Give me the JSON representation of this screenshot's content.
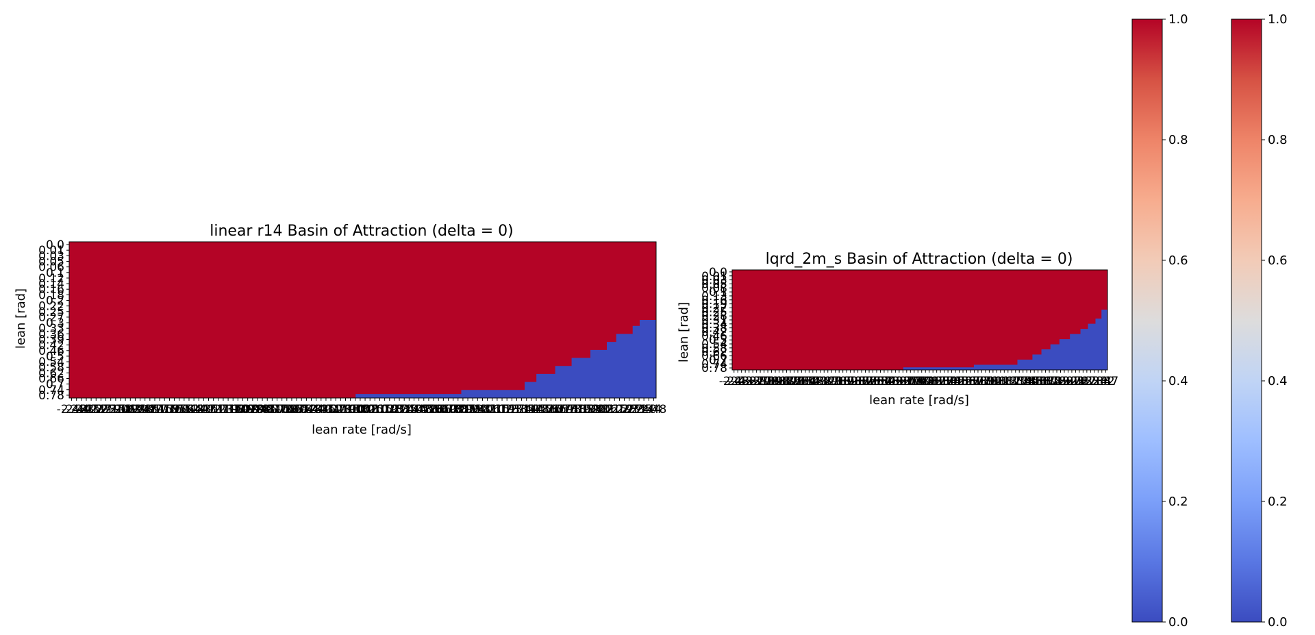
{
  "chart_data": [
    {
      "type": "heatmap",
      "title": "linear r14 Basin of Attraction (delta = 0)",
      "xlabel": "lean rate [rad/s]",
      "ylabel": "lean [rad]",
      "y_tick_labels": [
        "0.0",
        "0.01",
        "0.03",
        "0.05",
        "0.06",
        "0.1",
        "0.12",
        "0.14",
        "0.16",
        "0.18",
        "0.2",
        "0.22",
        "0.25",
        "0.27",
        "0.3",
        "0.33",
        "0.36",
        "0.39",
        "0.42",
        "0.46",
        "0.5",
        "0.54",
        "0.58",
        "0.62",
        "0.66",
        "0.7",
        "0.74",
        "0.78"
      ],
      "x_range": [
        -2.5,
        2.5
      ],
      "values_description_key": "boundary",
      "boundary": [
        {
          "x": -2.5,
          "y": 0.78
        },
        {
          "x": -0.06,
          "y": 0.78
        },
        {
          "x": -0.06,
          "y": 0.76
        },
        {
          "x": 0.84,
          "y": 0.76
        },
        {
          "x": 0.84,
          "y": 0.74
        },
        {
          "x": 1.38,
          "y": 0.74
        },
        {
          "x": 1.38,
          "y": 0.7
        },
        {
          "x": 1.48,
          "y": 0.7
        },
        {
          "x": 1.48,
          "y": 0.66
        },
        {
          "x": 1.64,
          "y": 0.66
        },
        {
          "x": 1.64,
          "y": 0.62
        },
        {
          "x": 1.78,
          "y": 0.62
        },
        {
          "x": 1.78,
          "y": 0.58
        },
        {
          "x": 1.94,
          "y": 0.58
        },
        {
          "x": 1.94,
          "y": 0.54
        },
        {
          "x": 2.08,
          "y": 0.54
        },
        {
          "x": 2.08,
          "y": 0.5
        },
        {
          "x": 2.16,
          "y": 0.5
        },
        {
          "x": 2.16,
          "y": 0.46
        },
        {
          "x": 2.3,
          "y": 0.46
        },
        {
          "x": 2.3,
          "y": 0.42
        },
        {
          "x": 2.36,
          "y": 0.42
        },
        {
          "x": 2.36,
          "y": 0.39
        },
        {
          "x": 2.5,
          "y": 0.39
        }
      ],
      "colorbar_range": [
        0.0,
        1.0
      ]
    },
    {
      "type": "heatmap",
      "title": "lqrd_2m_s Basin of Attraction (delta = 0)",
      "xlabel": "lean rate [rad/s]",
      "ylabel": "lean [rad]",
      "y_tick_labels": [
        "0.0",
        "0.01",
        "0.03",
        "0.05",
        "0.08",
        "0.1",
        "0.13",
        "0.16",
        "0.19",
        "0.22",
        "0.25",
        "0.28",
        "0.31",
        "0.34",
        "0.38",
        "0.42",
        "0.46",
        "0.5",
        "0.54",
        "0.58",
        "0.62",
        "0.66",
        "0.7",
        "0.74",
        "0.78"
      ],
      "x_range": [
        -2.5,
        2.5
      ],
      "boundary": [
        {
          "x": -2.5,
          "y": 0.78
        },
        {
          "x": -0.22,
          "y": 0.78
        },
        {
          "x": -0.22,
          "y": 0.76
        },
        {
          "x": 0.72,
          "y": 0.76
        },
        {
          "x": 0.72,
          "y": 0.74
        },
        {
          "x": 1.3,
          "y": 0.74
        },
        {
          "x": 1.3,
          "y": 0.7
        },
        {
          "x": 1.5,
          "y": 0.7
        },
        {
          "x": 1.5,
          "y": 0.66
        },
        {
          "x": 1.62,
          "y": 0.66
        },
        {
          "x": 1.62,
          "y": 0.62
        },
        {
          "x": 1.74,
          "y": 0.62
        },
        {
          "x": 1.74,
          "y": 0.58
        },
        {
          "x": 1.86,
          "y": 0.58
        },
        {
          "x": 1.86,
          "y": 0.54
        },
        {
          "x": 2.0,
          "y": 0.54
        },
        {
          "x": 2.0,
          "y": 0.5
        },
        {
          "x": 2.14,
          "y": 0.5
        },
        {
          "x": 2.14,
          "y": 0.46
        },
        {
          "x": 2.24,
          "y": 0.46
        },
        {
          "x": 2.24,
          "y": 0.42
        },
        {
          "x": 2.34,
          "y": 0.42
        },
        {
          "x": 2.34,
          "y": 0.38
        },
        {
          "x": 2.42,
          "y": 0.38
        },
        {
          "x": 2.42,
          "y": 0.31
        },
        {
          "x": 2.5,
          "y": 0.31
        }
      ],
      "colorbar_range": [
        0.0,
        1.0
      ]
    }
  ],
  "colorbars": [
    {
      "ticks": [
        "0.0",
        "0.2",
        "0.4",
        "0.6",
        "0.8",
        "1.0"
      ],
      "colormap": "coolwarm"
    },
    {
      "ticks": [
        "0.0",
        "0.2",
        "0.4",
        "0.6",
        "0.8",
        "1.0"
      ],
      "colormap": "coolwarm"
    }
  ],
  "colors": {
    "stable": "#b40426",
    "unstable": "#3b4cc0"
  }
}
